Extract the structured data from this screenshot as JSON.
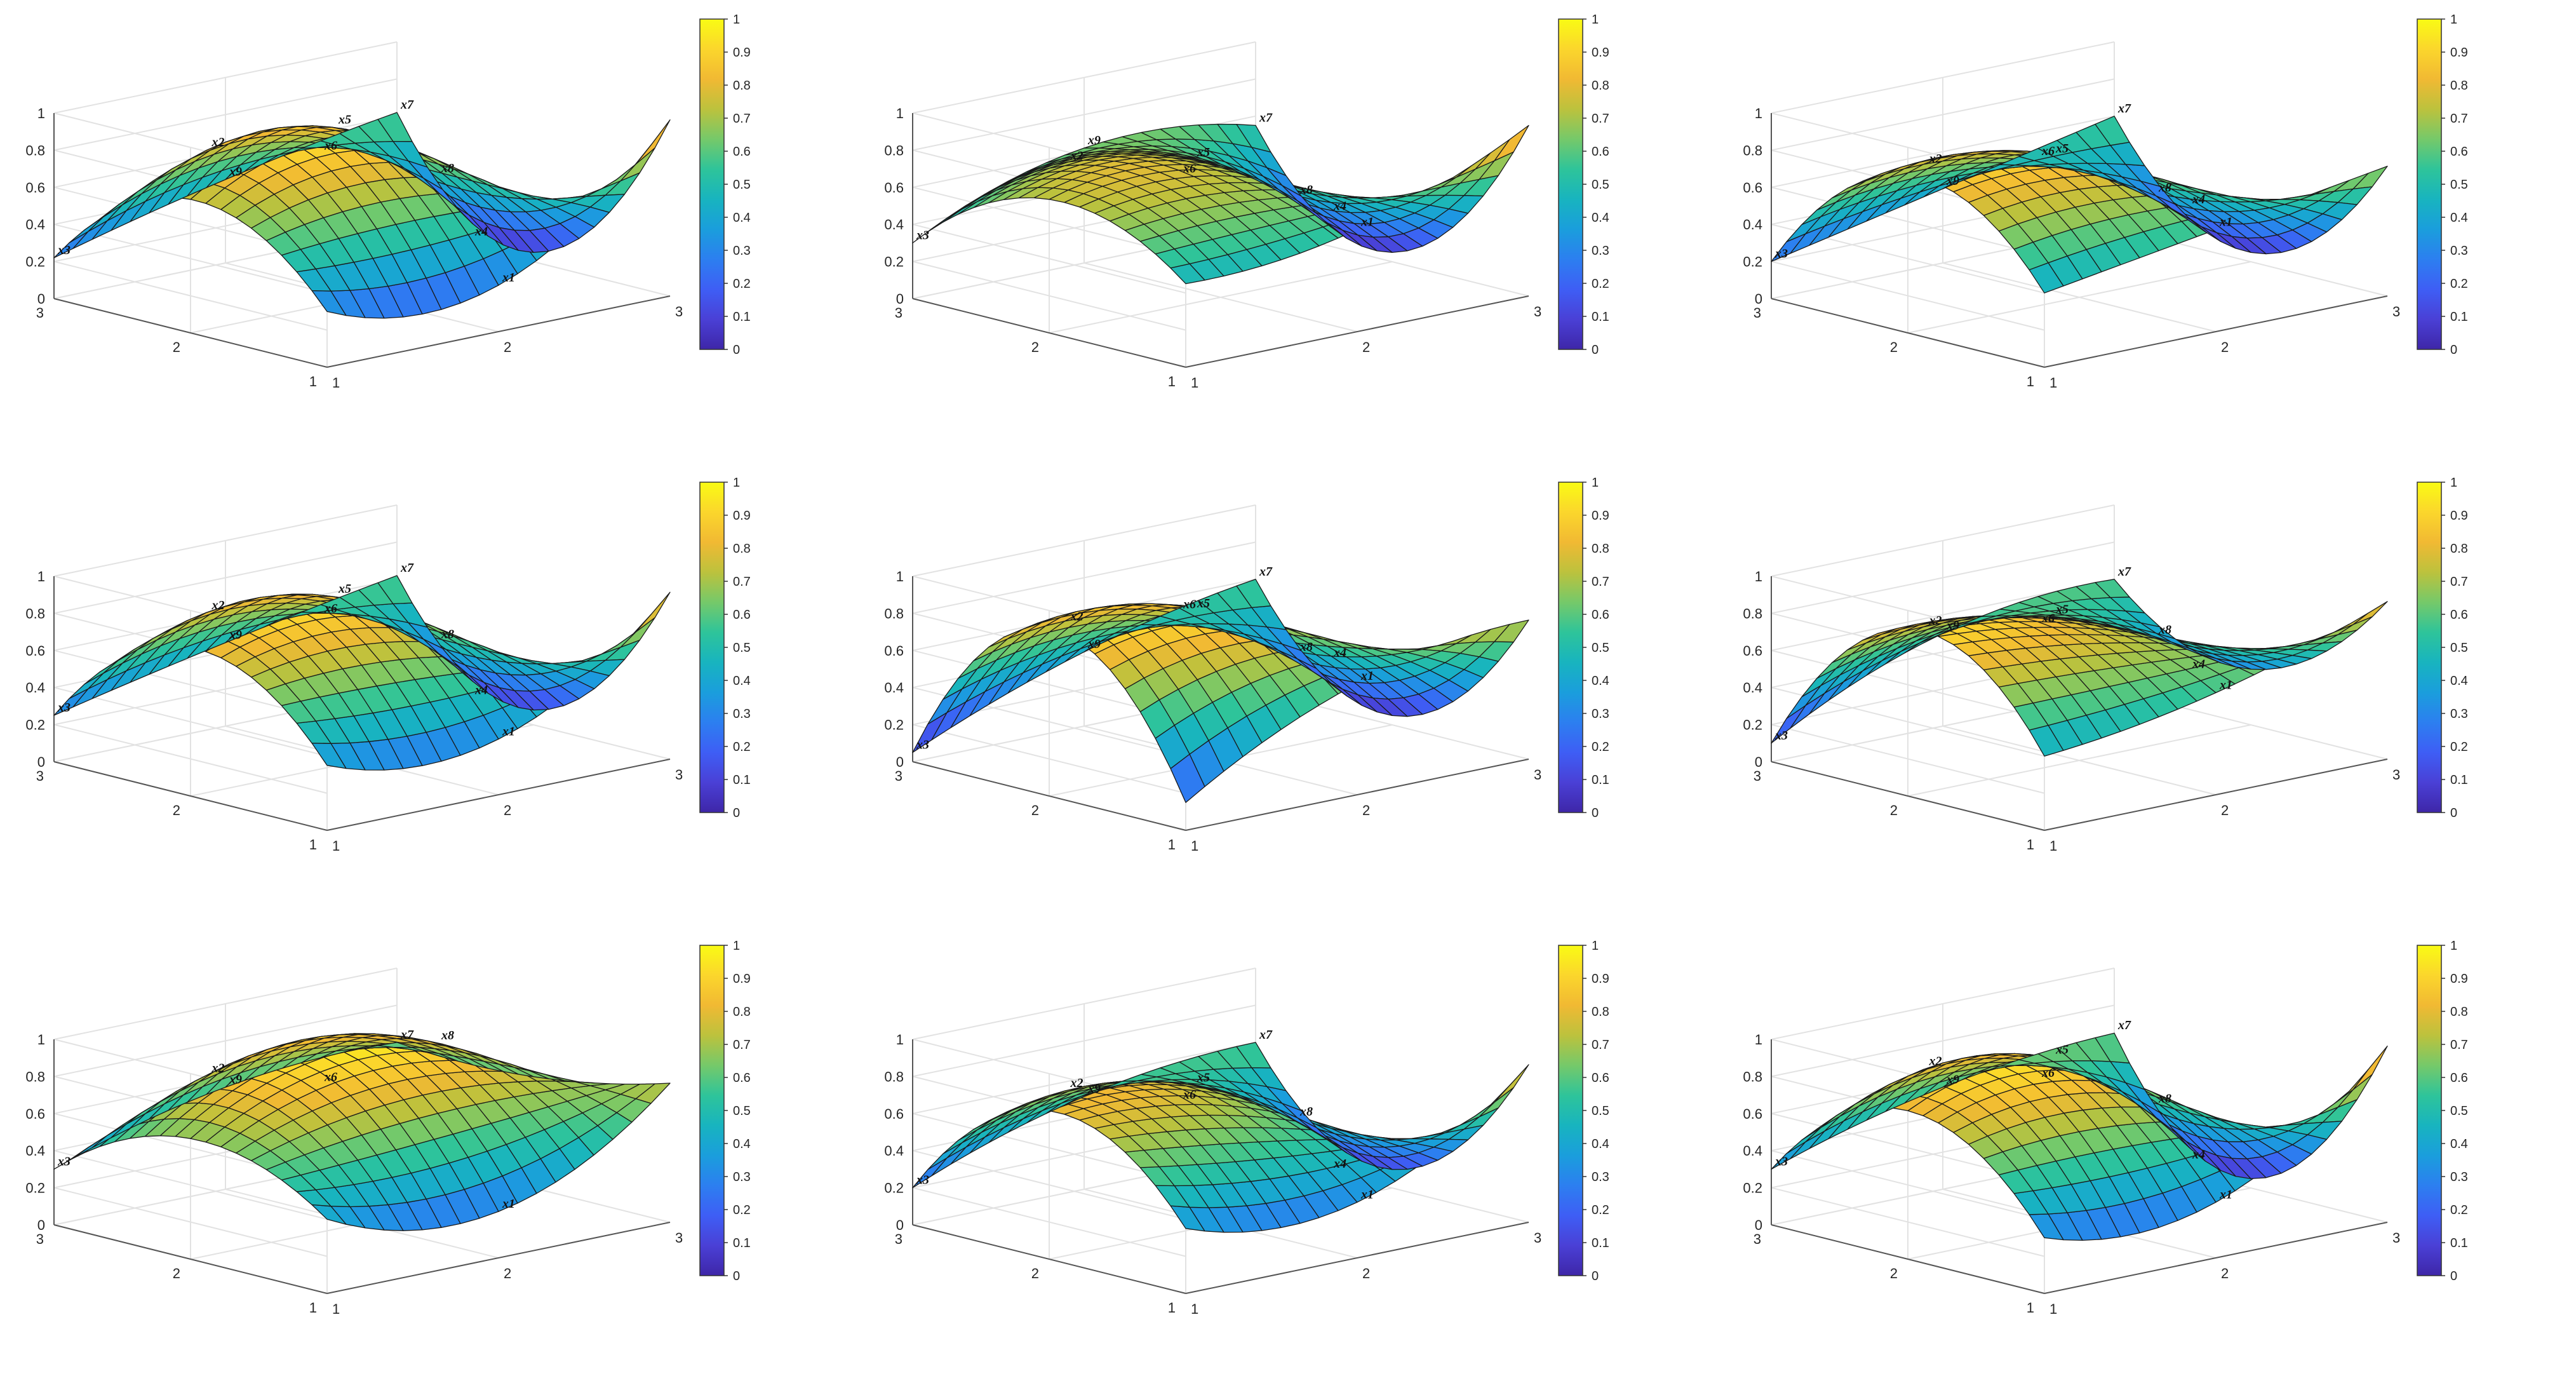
{
  "panel_count": 9,
  "colormap": [
    "#3e26a8",
    "#4a40d6",
    "#3e5ef5",
    "#2c7ff0",
    "#1a9edc",
    "#18b4bf",
    "#2ec49a",
    "#75c96a",
    "#bcc23d",
    "#f1b933",
    "#fbd62c",
    "#f9fb14"
  ],
  "mesh_edge_color": "#1a1a1a",
  "chart_data": [
    {
      "type": "surface",
      "panel": 1,
      "x_ticks": [
        "1",
        "2",
        "3"
      ],
      "y_ticks": [
        "1",
        "2",
        "3"
      ],
      "z_ticks": [
        "0",
        "0.2",
        "0.4",
        "0.6",
        "0.8",
        "1"
      ],
      "zlim": [
        0,
        1
      ],
      "colorbar": {
        "ticks": [
          "0",
          "0.1",
          "0.2",
          "0.3",
          "0.4",
          "0.5",
          "0.6",
          "0.7",
          "0.8",
          "0.9",
          "1"
        ],
        "range": [
          0,
          1
        ]
      },
      "node_labels": [
        "x1",
        "x2",
        "x3",
        "x4",
        "x5",
        "x6",
        "x7",
        "x8",
        "x9"
      ],
      "grid": [
        [
          0.3,
          0.25,
          0.95
        ],
        [
          0.72,
          0.88,
          0.05
        ],
        [
          0.22,
          0.45,
          0.62
        ]
      ]
    },
    {
      "type": "surface",
      "panel": 2,
      "x_ticks": [
        "1",
        "2",
        "3"
      ],
      "y_ticks": [
        "1",
        "2",
        "3"
      ],
      "z_ticks": [
        "0",
        "0.2",
        "0.4",
        "0.6",
        "0.8",
        "1"
      ],
      "zlim": [
        0,
        1
      ],
      "colorbar": {
        "ticks": [
          "0",
          "0.1",
          "0.2",
          "0.3",
          "0.4",
          "0.5",
          "0.6",
          "0.7",
          "0.8",
          "0.9",
          "1"
        ],
        "range": [
          0,
          1
        ]
      },
      "node_labels": [
        "x1",
        "x2",
        "x3",
        "x4",
        "x5",
        "x6",
        "x7",
        "x8",
        "x9"
      ],
      "grid": [
        [
          0.45,
          0.55,
          0.92
        ],
        [
          0.72,
          0.7,
          0.05
        ],
        [
          0.3,
          0.62,
          0.55
        ]
      ]
    },
    {
      "type": "surface",
      "panel": 3,
      "x_ticks": [
        "1",
        "2",
        "3"
      ],
      "y_ticks": [
        "1",
        "2",
        "3"
      ],
      "z_ticks": [
        "0",
        "0.2",
        "0.4",
        "0.6",
        "0.8",
        "1"
      ],
      "zlim": [
        0,
        1
      ],
      "colorbar": {
        "ticks": [
          "0",
          "0.1",
          "0.2",
          "0.3",
          "0.4",
          "0.5",
          "0.6",
          "0.7",
          "0.8",
          "0.9",
          "1"
        ],
        "range": [
          0,
          1
        ]
      },
      "node_labels": [
        "x1",
        "x2",
        "x3",
        "x4",
        "x5",
        "x6",
        "x7",
        "x8",
        "x9"
      ],
      "grid": [
        [
          0.4,
          0.55,
          0.7
        ],
        [
          0.85,
          0.75,
          0.05
        ],
        [
          0.2,
          0.4,
          0.6
        ]
      ]
    },
    {
      "type": "surface",
      "panel": 4,
      "x_ticks": [
        "1",
        "2",
        "3"
      ],
      "y_ticks": [
        "1",
        "2",
        "3"
      ],
      "z_ticks": [
        "0",
        "0.2",
        "0.4",
        "0.6",
        "0.8",
        "1"
      ],
      "zlim": [
        0,
        1
      ],
      "colorbar": {
        "ticks": [
          "0",
          "0.1",
          "0.2",
          "0.3",
          "0.4",
          "0.5",
          "0.6",
          "0.7",
          "0.8",
          "0.9",
          "1"
        ],
        "range": [
          0,
          1
        ]
      },
      "node_labels": [
        "x1",
        "x2",
        "x3",
        "x4",
        "x5",
        "x6",
        "x7",
        "x8",
        "x9"
      ],
      "grid": [
        [
          0.35,
          0.3,
          0.9
        ],
        [
          0.8,
          0.85,
          0.08
        ],
        [
          0.25,
          0.45,
          0.62
        ]
      ]
    },
    {
      "type": "surface",
      "panel": 5,
      "x_ticks": [
        "1",
        "2",
        "3"
      ],
      "y_ticks": [
        "1",
        "2",
        "3"
      ],
      "z_ticks": [
        "0",
        "0.2",
        "0.4",
        "0.6",
        "0.8",
        "1"
      ],
      "zlim": [
        0,
        1
      ],
      "colorbar": {
        "ticks": [
          "0",
          "0.1",
          "0.2",
          "0.3",
          "0.4",
          "0.5",
          "0.6",
          "0.7",
          "0.8",
          "0.9",
          "1"
        ],
        "range": [
          0,
          1
        ]
      },
      "node_labels": [
        "x1",
        "x2",
        "x3",
        "x4",
        "x5",
        "x6",
        "x7",
        "x8",
        "x9"
      ],
      "grid": [
        [
          0.15,
          0.6,
          0.75
        ],
        [
          0.9,
          0.8,
          0.05
        ],
        [
          0.05,
          0.4,
          0.6
        ]
      ]
    },
    {
      "type": "surface",
      "panel": 6,
      "x_ticks": [
        "1",
        "2",
        "3"
      ],
      "y_ticks": [
        "1",
        "2",
        "3"
      ],
      "z_ticks": [
        "0",
        "0.2",
        "0.4",
        "0.6",
        "0.8",
        "1"
      ],
      "zlim": [
        0,
        1
      ],
      "colorbar": {
        "ticks": [
          "0",
          "0.1",
          "0.2",
          "0.3",
          "0.4",
          "0.5",
          "0.6",
          "0.7",
          "0.8",
          "0.9",
          "1"
        ],
        "range": [
          0,
          1
        ]
      },
      "node_labels": [
        "x1",
        "x2",
        "x3",
        "x4",
        "x5",
        "x6",
        "x7",
        "x8",
        "x9"
      ],
      "grid": [
        [
          0.4,
          0.55,
          0.85
        ],
        [
          0.9,
          0.75,
          0.3
        ],
        [
          0.1,
          0.5,
          0.6
        ]
      ]
    },
    {
      "type": "surface",
      "panel": 7,
      "x_ticks": [
        "1",
        "2",
        "3"
      ],
      "y_ticks": [
        "1",
        "2",
        "3"
      ],
      "z_ticks": [
        "0",
        "0.2",
        "0.4",
        "0.6",
        "0.8",
        "1"
      ],
      "zlim": [
        0,
        1
      ],
      "colorbar": {
        "ticks": [
          "0",
          "0.1",
          "0.2",
          "0.3",
          "0.4",
          "0.5",
          "0.6",
          "0.7",
          "0.8",
          "0.9",
          "1"
        ],
        "range": [
          0,
          1
        ]
      },
      "node_labels": [
        "x1",
        "x2",
        "x3",
        "x6",
        "x7",
        "x8",
        "x9"
      ],
      "grid": [
        [
          0.4,
          0.25,
          0.75
        ],
        [
          0.65,
          0.95,
          0.6
        ],
        [
          0.3,
          0.55,
          0.6
        ]
      ]
    },
    {
      "type": "surface",
      "panel": 8,
      "x_ticks": [
        "1",
        "2",
        "3"
      ],
      "y_ticks": [
        "1",
        "2",
        "3"
      ],
      "z_ticks": [
        "0",
        "0.2",
        "0.4",
        "0.6",
        "0.8",
        "1"
      ],
      "zlim": [
        0,
        1
      ],
      "colorbar": {
        "ticks": [
          "0",
          "0.1",
          "0.2",
          "0.3",
          "0.4",
          "0.5",
          "0.6",
          "0.7",
          "0.8",
          "0.9",
          "1"
        ],
        "range": [
          0,
          1
        ]
      },
      "node_labels": [
        "x1",
        "x2",
        "x3",
        "x4",
        "x5",
        "x6",
        "x7",
        "x8",
        "x9"
      ],
      "grid": [
        [
          0.35,
          0.3,
          0.85
        ],
        [
          0.8,
          0.7,
          0.1
        ],
        [
          0.2,
          0.5,
          0.6
        ]
      ]
    },
    {
      "type": "surface",
      "panel": 9,
      "x_ticks": [
        "1",
        "2",
        "3"
      ],
      "y_ticks": [
        "1",
        "2",
        "3"
      ],
      "z_ticks": [
        "0",
        "0.2",
        "0.4",
        "0.6",
        "0.8",
        "1"
      ],
      "zlim": [
        0,
        1
      ],
      "colorbar": {
        "ticks": [
          "0",
          "0.1",
          "0.2",
          "0.3",
          "0.4",
          "0.5",
          "0.6",
          "0.7",
          "0.8",
          "0.9",
          "1"
        ],
        "range": [
          0,
          1
        ]
      },
      "node_labels": [
        "x1",
        "x2",
        "x3",
        "x4",
        "x5",
        "x6",
        "x7",
        "x8",
        "x9"
      ],
      "grid": [
        [
          0.3,
          0.3,
          0.95
        ],
        [
          0.8,
          0.85,
          0.05
        ],
        [
          0.3,
          0.55,
          0.65
        ]
      ]
    }
  ]
}
